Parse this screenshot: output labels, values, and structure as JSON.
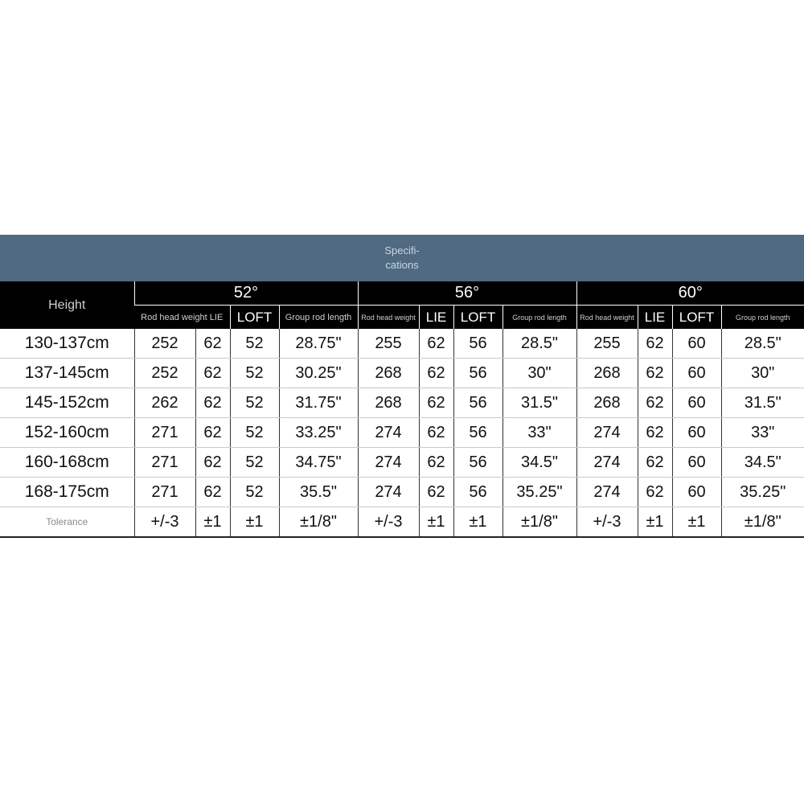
{
  "title": "Specifi-\ncations",
  "header": {
    "height_label": "Height",
    "angles": [
      "52°",
      "56°",
      "60°"
    ],
    "subheaders": [
      [
        "Rod head weight LIE",
        "",
        "LOFT",
        "Group rod length"
      ],
      [
        "Rod head weight",
        "LIE",
        "LOFT",
        "Group rod length"
      ],
      [
        "Rod head weight",
        "LIE",
        "LOFT",
        "Group rod length"
      ]
    ]
  },
  "rows": [
    {
      "height": "130-137cm",
      "cells": [
        "252",
        "62",
        "52",
        "28.75\"",
        "255",
        "62",
        "56",
        "28.5\"",
        "255",
        "62",
        "60",
        "28.5\""
      ]
    },
    {
      "height": "137-145cm",
      "cells": [
        "252",
        "62",
        "52",
        "30.25\"",
        "268",
        "62",
        "56",
        "30\"",
        "268",
        "62",
        "60",
        "30\""
      ]
    },
    {
      "height": "145-152cm",
      "cells": [
        "262",
        "62",
        "52",
        "31.75\"",
        "268",
        "62",
        "56",
        "31.5\"",
        "268",
        "62",
        "60",
        "31.5\""
      ]
    },
    {
      "height": "152-160cm",
      "cells": [
        "271",
        "62",
        "52",
        "33.25\"",
        "274",
        "62",
        "56",
        "33\"",
        "274",
        "62",
        "60",
        "33\""
      ]
    },
    {
      "height": "160-168cm",
      "cells": [
        "271",
        "62",
        "52",
        "34.75\"",
        "274",
        "62",
        "56",
        "34.5\"",
        "274",
        "62",
        "60",
        "34.5\""
      ]
    },
    {
      "height": "168-175cm",
      "cells": [
        "271",
        "62",
        "52",
        "35.5\"",
        "274",
        "62",
        "56",
        "35.25\"",
        "274",
        "62",
        "60",
        "35.25\""
      ]
    }
  ],
  "tolerance": {
    "label": "Tolerance",
    "cells": [
      "+/-3",
      "±1",
      "±1",
      "±1/8\"",
      "+/-3",
      "±1",
      "±1",
      "±1/8\"",
      "+/-3",
      "±1",
      "±1",
      "±1/8\""
    ]
  }
}
